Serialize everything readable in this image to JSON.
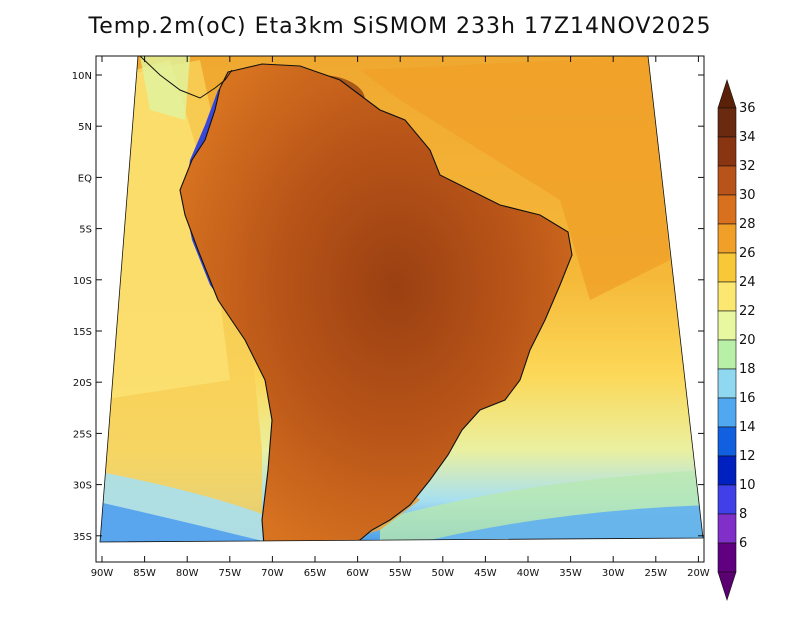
{
  "title": "Temp.2m(oC) Eta3km SiSMOM 233h 17Z14NOV2025",
  "lon_labels": [
    "90W",
    "85W",
    "80W",
    "75W",
    "70W",
    "65W",
    "60W",
    "55W",
    "50W",
    "45W",
    "40W",
    "35W",
    "30W",
    "25W",
    "20W"
  ],
  "lat_labels": [
    "10N",
    "5N",
    "EQ",
    "5S",
    "10S",
    "15S",
    "20S",
    "25S",
    "30S",
    "35S"
  ],
  "colorbar": {
    "levels": [
      {
        "value": "36",
        "color": "#6a2a10"
      },
      {
        "value": "34",
        "color": "#8a3512"
      },
      {
        "value": "32",
        "color": "#b8531a"
      },
      {
        "value": "30",
        "color": "#d8701e"
      },
      {
        "value": "28",
        "color": "#f0a028"
      },
      {
        "value": "26",
        "color": "#f8c838"
      },
      {
        "value": "24",
        "color": "#fce870"
      },
      {
        "value": "22",
        "color": "#e8f8a0"
      },
      {
        "value": "20",
        "color": "#b8f0a8"
      },
      {
        "value": "18",
        "color": "#90d8f0"
      },
      {
        "value": "16",
        "color": "#50a8f0"
      },
      {
        "value": "14",
        "color": "#1060e0"
      },
      {
        "value": "12",
        "color": "#0020c0"
      },
      {
        "value": "10",
        "color": "#4040e8"
      },
      {
        "value": "8",
        "color": "#8030c8"
      },
      {
        "value": "6",
        "color": "#600080"
      }
    ],
    "top_color": "#5a2008",
    "bottom_color": "#5a0070"
  },
  "colors": {
    "ocean_warm": "#f0a830",
    "ocean_mid": "#f8d050",
    "ocean_cool": "#fce880",
    "land_hot": "#b85418",
    "land_very_hot": "#8a3510",
    "land_warm": "#d87420",
    "andes_cold": "#3040d8",
    "borders": "#111111"
  }
}
